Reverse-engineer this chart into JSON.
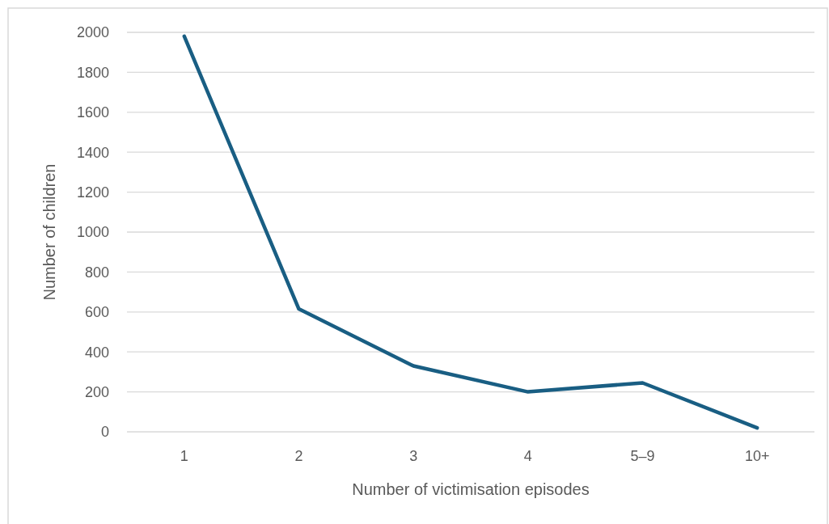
{
  "chart_data": {
    "type": "line",
    "xlabel": "Number of victimisation episodes",
    "ylabel": "Number of children",
    "categories": [
      "1",
      "2",
      "3",
      "4",
      "5–9",
      "10+"
    ],
    "series": [
      {
        "color": "#195e83",
        "values": [
          1980,
          615,
          330,
          200,
          245,
          20
        ]
      }
    ],
    "ylim": [
      0,
      2000
    ],
    "yticks": [
      0,
      200,
      400,
      600,
      800,
      1000,
      1200,
      1400,
      1600,
      1800,
      2000
    ],
    "grid": "y",
    "marker": "none",
    "line_style": "solid"
  }
}
